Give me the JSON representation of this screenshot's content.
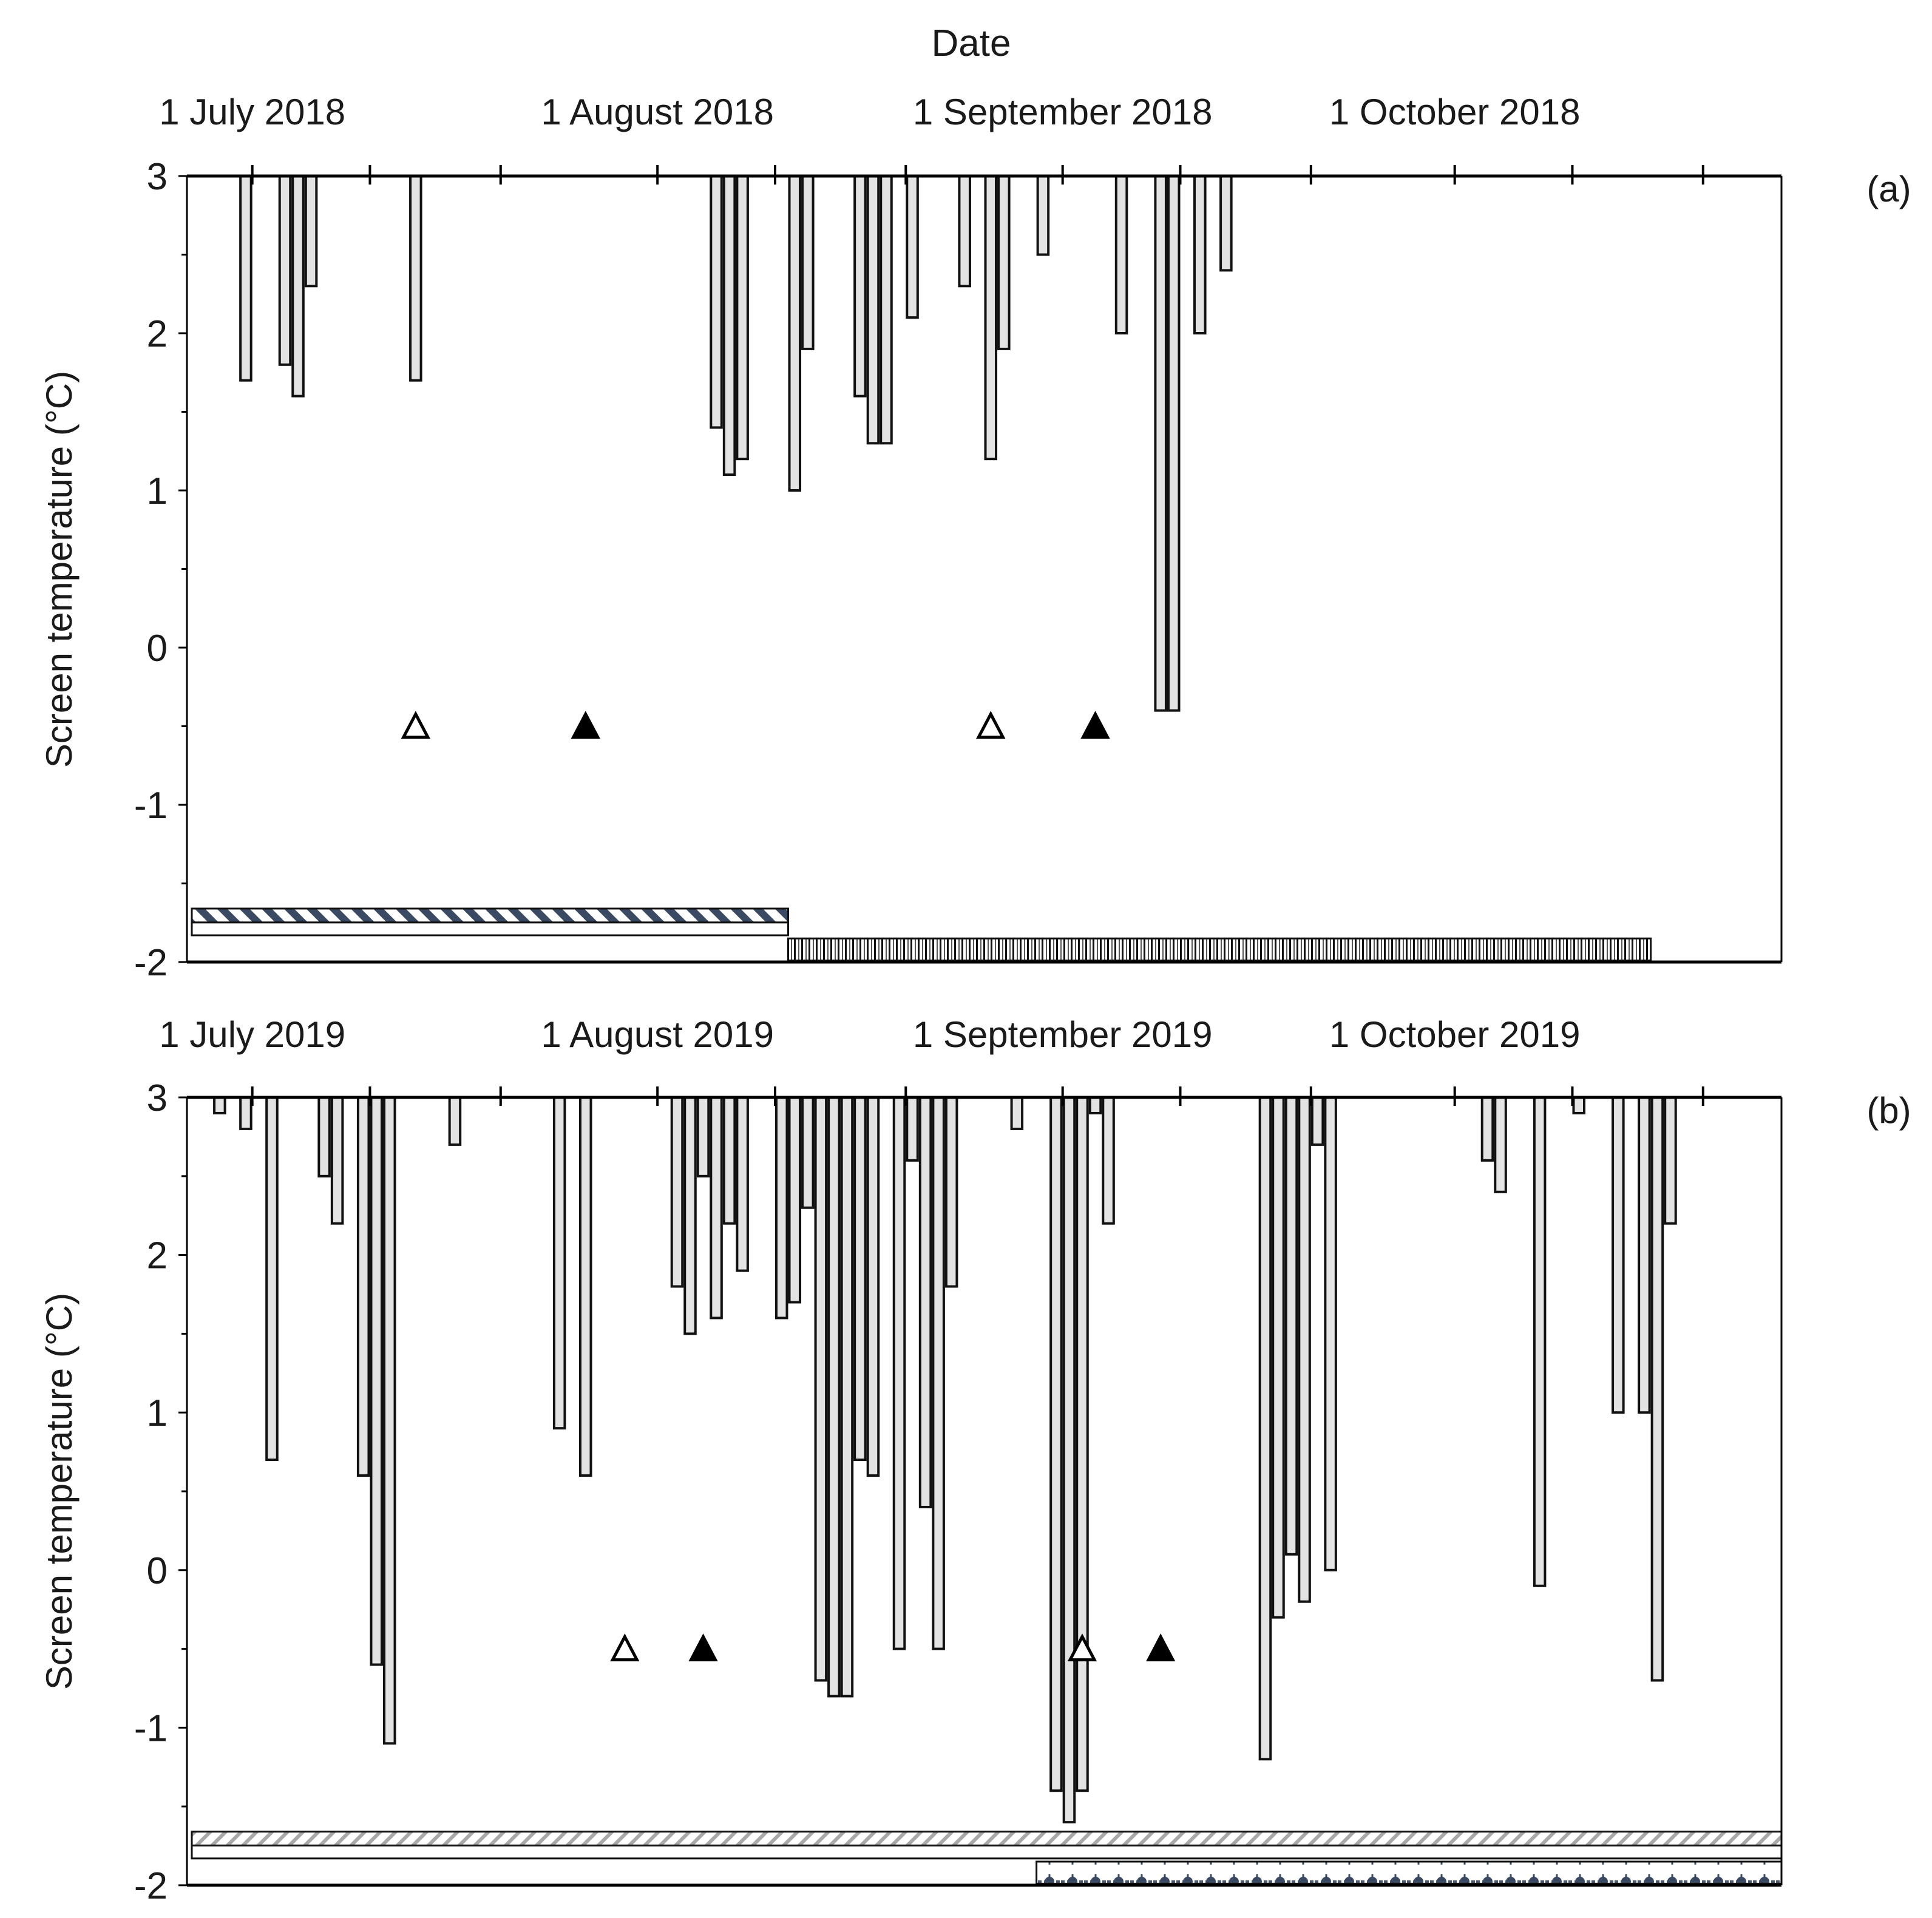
{
  "figure": {
    "title": "Date",
    "ylabel": "Screen temperature (°C)"
  },
  "chart_data": [
    {
      "type": "bar",
      "panel_label": "(a)",
      "title": "Date",
      "xlabel": "Date",
      "ylabel": "Screen temperature (°C)",
      "ylim": [
        -2,
        3
      ],
      "y_ticks": [
        "3",
        "2",
        "1",
        "0",
        "-1",
        "-2"
      ],
      "x_start": "2018-06-26",
      "x_end": "2018-10-26",
      "date_labels": [
        {
          "text": "1 July 2018",
          "date": "2018-07-01"
        },
        {
          "text": "1 August 2018",
          "date": "2018-08-01"
        },
        {
          "text": "1 September 2018",
          "date": "2018-09-01"
        },
        {
          "text": "1 October 2018",
          "date": "2018-10-01"
        }
      ],
      "bar_base": 3,
      "bars": [
        {
          "date": "2018-06-30",
          "value": 1.7
        },
        {
          "date": "2018-07-03",
          "value": 1.8
        },
        {
          "date": "2018-07-04",
          "value": 1.6
        },
        {
          "date": "2018-07-05",
          "value": 2.3
        },
        {
          "date": "2018-07-13",
          "value": 1.7
        },
        {
          "date": "2018-08-05",
          "value": 1.4
        },
        {
          "date": "2018-08-06",
          "value": 1.1
        },
        {
          "date": "2018-08-07",
          "value": 1.2
        },
        {
          "date": "2018-08-11",
          "value": 1.0
        },
        {
          "date": "2018-08-12",
          "value": 1.9
        },
        {
          "date": "2018-08-16",
          "value": 1.6
        },
        {
          "date": "2018-08-17",
          "value": 1.3
        },
        {
          "date": "2018-08-18",
          "value": 1.3
        },
        {
          "date": "2018-08-20",
          "value": 2.1
        },
        {
          "date": "2018-08-24",
          "value": 2.3
        },
        {
          "date": "2018-08-26",
          "value": 1.2
        },
        {
          "date": "2018-08-27",
          "value": 1.9
        },
        {
          "date": "2018-08-30",
          "value": 2.5
        },
        {
          "date": "2018-09-05",
          "value": 2.0
        },
        {
          "date": "2018-09-08",
          "value": -0.4
        },
        {
          "date": "2018-09-09",
          "value": -0.4
        },
        {
          "date": "2018-09-11",
          "value": 2.0
        },
        {
          "date": "2018-09-13",
          "value": 2.4
        }
      ],
      "markers": [
        {
          "date": "2018-07-13",
          "value": -0.5,
          "style": "open-triangle"
        },
        {
          "date": "2018-07-26",
          "value": -0.5,
          "style": "filled-triangle"
        },
        {
          "date": "2018-08-26",
          "value": -0.5,
          "style": "open-triangle"
        },
        {
          "date": "2018-09-03",
          "value": -0.5,
          "style": "filled-triangle"
        }
      ],
      "period_bars": [
        {
          "start": "2018-06-26",
          "end": "2018-08-11",
          "row": "upper",
          "pattern": "hatch-navy"
        },
        {
          "start": "2018-08-11",
          "end": "2018-10-16",
          "row": "lower",
          "pattern": "vertical-lines"
        }
      ]
    },
    {
      "type": "bar",
      "panel_label": "(b)",
      "xlabel": "Date",
      "ylabel": "Screen temperature (°C)",
      "ylim": [
        -2,
        3
      ],
      "y_ticks": [
        "3",
        "2",
        "1",
        "0",
        "-1",
        "-2"
      ],
      "x_start": "2019-06-26",
      "x_end": "2019-10-26",
      "date_labels": [
        {
          "text": "1 July 2019",
          "date": "2019-07-01"
        },
        {
          "text": "1 August 2019",
          "date": "2019-08-01"
        },
        {
          "text": "1 September 2019",
          "date": "2019-09-01"
        },
        {
          "text": "1 October 2019",
          "date": "2019-10-01"
        }
      ],
      "bar_base": 3,
      "bars": [
        {
          "date": "2019-06-28",
          "value": 2.9
        },
        {
          "date": "2019-06-30",
          "value": 2.8
        },
        {
          "date": "2019-07-02",
          "value": 0.7
        },
        {
          "date": "2019-07-06",
          "value": 2.5
        },
        {
          "date": "2019-07-07",
          "value": 2.2
        },
        {
          "date": "2019-07-09",
          "value": 0.6
        },
        {
          "date": "2019-07-10",
          "value": -0.6
        },
        {
          "date": "2019-07-11",
          "value": -1.1
        },
        {
          "date": "2019-07-16",
          "value": 2.7
        },
        {
          "date": "2019-07-24",
          "value": 0.9
        },
        {
          "date": "2019-07-26",
          "value": 0.6
        },
        {
          "date": "2019-08-02",
          "value": 1.8
        },
        {
          "date": "2019-08-03",
          "value": 1.5
        },
        {
          "date": "2019-08-04",
          "value": 2.5
        },
        {
          "date": "2019-08-05",
          "value": 1.6
        },
        {
          "date": "2019-08-06",
          "value": 2.2
        },
        {
          "date": "2019-08-07",
          "value": 1.9
        },
        {
          "date": "2019-08-10",
          "value": 1.6
        },
        {
          "date": "2019-08-11",
          "value": 1.7
        },
        {
          "date": "2019-08-12",
          "value": 2.3
        },
        {
          "date": "2019-08-13",
          "value": -0.7
        },
        {
          "date": "2019-08-14",
          "value": -0.8
        },
        {
          "date": "2019-08-15",
          "value": -0.8
        },
        {
          "date": "2019-08-16",
          "value": 0.7
        },
        {
          "date": "2019-08-17",
          "value": 0.6
        },
        {
          "date": "2019-08-19",
          "value": -0.5
        },
        {
          "date": "2019-08-20",
          "value": 2.6
        },
        {
          "date": "2019-08-21",
          "value": 0.4
        },
        {
          "date": "2019-08-22",
          "value": -0.5
        },
        {
          "date": "2019-08-23",
          "value": 1.8
        },
        {
          "date": "2019-08-28",
          "value": 2.8
        },
        {
          "date": "2019-08-31",
          "value": -1.4
        },
        {
          "date": "2019-09-01",
          "value": -1.6
        },
        {
          "date": "2019-09-02",
          "value": -1.4
        },
        {
          "date": "2019-09-03",
          "value": 2.9
        },
        {
          "date": "2019-09-04",
          "value": 2.2
        },
        {
          "date": "2019-09-16",
          "value": -1.2
        },
        {
          "date": "2019-09-17",
          "value": -0.3
        },
        {
          "date": "2019-09-18",
          "value": 0.1
        },
        {
          "date": "2019-09-19",
          "value": -0.2
        },
        {
          "date": "2019-09-20",
          "value": 2.7
        },
        {
          "date": "2019-09-21",
          "value": 0.0
        },
        {
          "date": "2019-10-03",
          "value": 2.6
        },
        {
          "date": "2019-10-04",
          "value": 2.4
        },
        {
          "date": "2019-10-07",
          "value": -0.1
        },
        {
          "date": "2019-10-10",
          "value": 2.9
        },
        {
          "date": "2019-10-13",
          "value": 1.0
        },
        {
          "date": "2019-10-15",
          "value": 1.0
        },
        {
          "date": "2019-10-16",
          "value": -0.7
        },
        {
          "date": "2019-10-17",
          "value": 2.2
        }
      ],
      "markers": [
        {
          "date": "2019-07-29",
          "value": -0.5,
          "style": "open-triangle"
        },
        {
          "date": "2019-08-04",
          "value": -0.5,
          "style": "filled-triangle"
        },
        {
          "date": "2019-09-02",
          "value": -0.5,
          "style": "open-triangle"
        },
        {
          "date": "2019-09-08",
          "value": -0.5,
          "style": "filled-triangle"
        }
      ],
      "period_bars": [
        {
          "start": "2019-06-26",
          "end": "2019-10-26",
          "row": "upper",
          "pattern": "hatch-grey"
        },
        {
          "start": "2019-08-30",
          "end": "2019-10-26",
          "row": "lower",
          "pattern": "dotted-navy"
        }
      ]
    }
  ]
}
